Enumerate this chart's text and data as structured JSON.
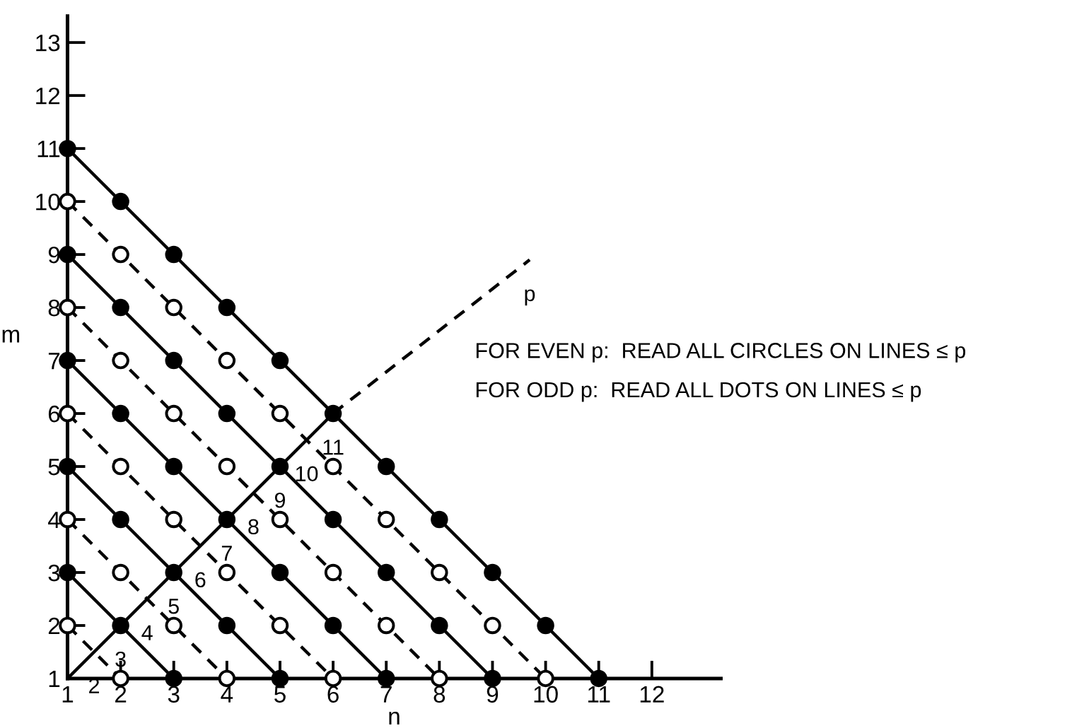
{
  "chart_data": {
    "type": "scatter",
    "xlabel": "n",
    "ylabel": "m",
    "xlim": [
      1,
      13.3
    ],
    "ylim": [
      1,
      13.5
    ],
    "xticks": [
      1,
      2,
      3,
      4,
      5,
      6,
      7,
      8,
      9,
      10,
      11,
      12
    ],
    "yticks": [
      1,
      2,
      3,
      4,
      5,
      6,
      7,
      8,
      9,
      10,
      11,
      12,
      13
    ],
    "grid": false,
    "legend": false,
    "series": [
      {
        "type": "line",
        "color": "#000000",
        "line_style": "dashed",
        "x": [
          1,
          2
        ],
        "values": [
          2,
          1
        ]
      },
      {
        "type": "line",
        "color": "#000000",
        "line_style": "solid",
        "x": [
          1,
          3
        ],
        "values": [
          3,
          1
        ]
      },
      {
        "type": "line",
        "color": "#000000",
        "line_style": "dashed",
        "x": [
          1,
          4
        ],
        "values": [
          4,
          1
        ]
      },
      {
        "type": "line",
        "color": "#000000",
        "line_style": "solid",
        "x": [
          1,
          5
        ],
        "values": [
          5,
          1
        ]
      },
      {
        "type": "line",
        "color": "#000000",
        "line_style": "dashed",
        "x": [
          1,
          6
        ],
        "values": [
          6,
          1
        ]
      },
      {
        "type": "line",
        "color": "#000000",
        "line_style": "solid",
        "x": [
          1,
          7
        ],
        "values": [
          7,
          1
        ]
      },
      {
        "type": "line",
        "color": "#000000",
        "line_style": "dashed",
        "x": [
          1,
          8
        ],
        "values": [
          8,
          1
        ]
      },
      {
        "type": "line",
        "color": "#000000",
        "line_style": "solid",
        "x": [
          1,
          9
        ],
        "values": [
          9,
          1
        ]
      },
      {
        "type": "line",
        "color": "#000000",
        "line_style": "dashed",
        "x": [
          1,
          10
        ],
        "values": [
          10,
          1
        ]
      },
      {
        "type": "line",
        "color": "#000000",
        "line_style": "solid",
        "x": [
          1,
          11
        ],
        "values": [
          11,
          1
        ]
      },
      {
        "type": "line",
        "color": "#000000",
        "line_style": "solid",
        "x": [
          1,
          6
        ],
        "values": [
          1,
          6
        ]
      },
      {
        "type": "line",
        "color": "#000000",
        "line_style": "dashed",
        "x": [
          6,
          9.7
        ],
        "values": [
          6,
          8.9
        ]
      },
      {
        "type": "scatter",
        "color": "#000000",
        "marker": "circle",
        "x": [
          1,
          3,
          2,
          5,
          4,
          3,
          2,
          1,
          7,
          6,
          5,
          4,
          3,
          2,
          1,
          9,
          8,
          7,
          6,
          5,
          4,
          3,
          2,
          1,
          11,
          10,
          9,
          8,
          7,
          6,
          5,
          4,
          3,
          2,
          1
        ],
        "values": [
          3,
          1,
          2,
          1,
          2,
          3,
          4,
          5,
          1,
          2,
          3,
          4,
          5,
          6,
          7,
          1,
          2,
          3,
          4,
          5,
          6,
          7,
          8,
          9,
          1,
          2,
          3,
          4,
          5,
          6,
          7,
          8,
          9,
          10,
          11
        ]
      },
      {
        "type": "scatter",
        "color": "#ffffff",
        "marker": "circle",
        "x": [
          2,
          1,
          4,
          3,
          2,
          1,
          6,
          5,
          4,
          3,
          2,
          1,
          8,
          7,
          6,
          5,
          4,
          3,
          2,
          1,
          10,
          9,
          8,
          7,
          6,
          5,
          4,
          3,
          2,
          1
        ],
        "values": [
          1,
          2,
          1,
          2,
          3,
          4,
          1,
          2,
          3,
          4,
          5,
          6,
          1,
          2,
          3,
          4,
          5,
          6,
          7,
          8,
          1,
          2,
          3,
          4,
          5,
          6,
          7,
          8,
          9,
          10
        ]
      }
    ],
    "annotations": [
      {
        "text": "2",
        "x": 1.5,
        "y": 1.5
      },
      {
        "text": "3",
        "x": 2,
        "y": 2
      },
      {
        "text": "4",
        "x": 2.5,
        "y": 2.5
      },
      {
        "text": "5",
        "x": 3,
        "y": 3
      },
      {
        "text": "6",
        "x": 3.5,
        "y": 3.5
      },
      {
        "text": "7",
        "x": 4,
        "y": 4
      },
      {
        "text": "8",
        "x": 4.5,
        "y": 4.5
      },
      {
        "text": "9",
        "x": 5,
        "y": 5
      },
      {
        "text": "10",
        "x": 5.5,
        "y": 5.5
      },
      {
        "text": "11",
        "x": 6,
        "y": 6
      },
      {
        "text": "p",
        "x": 9.7,
        "y": 8.9
      },
      "FOR EVEN p:  READ ALL CIRCLES ON LINES ≤ p",
      "FOR ODD p:  READ ALL DOTS ON LINES ≤ p"
    ]
  }
}
